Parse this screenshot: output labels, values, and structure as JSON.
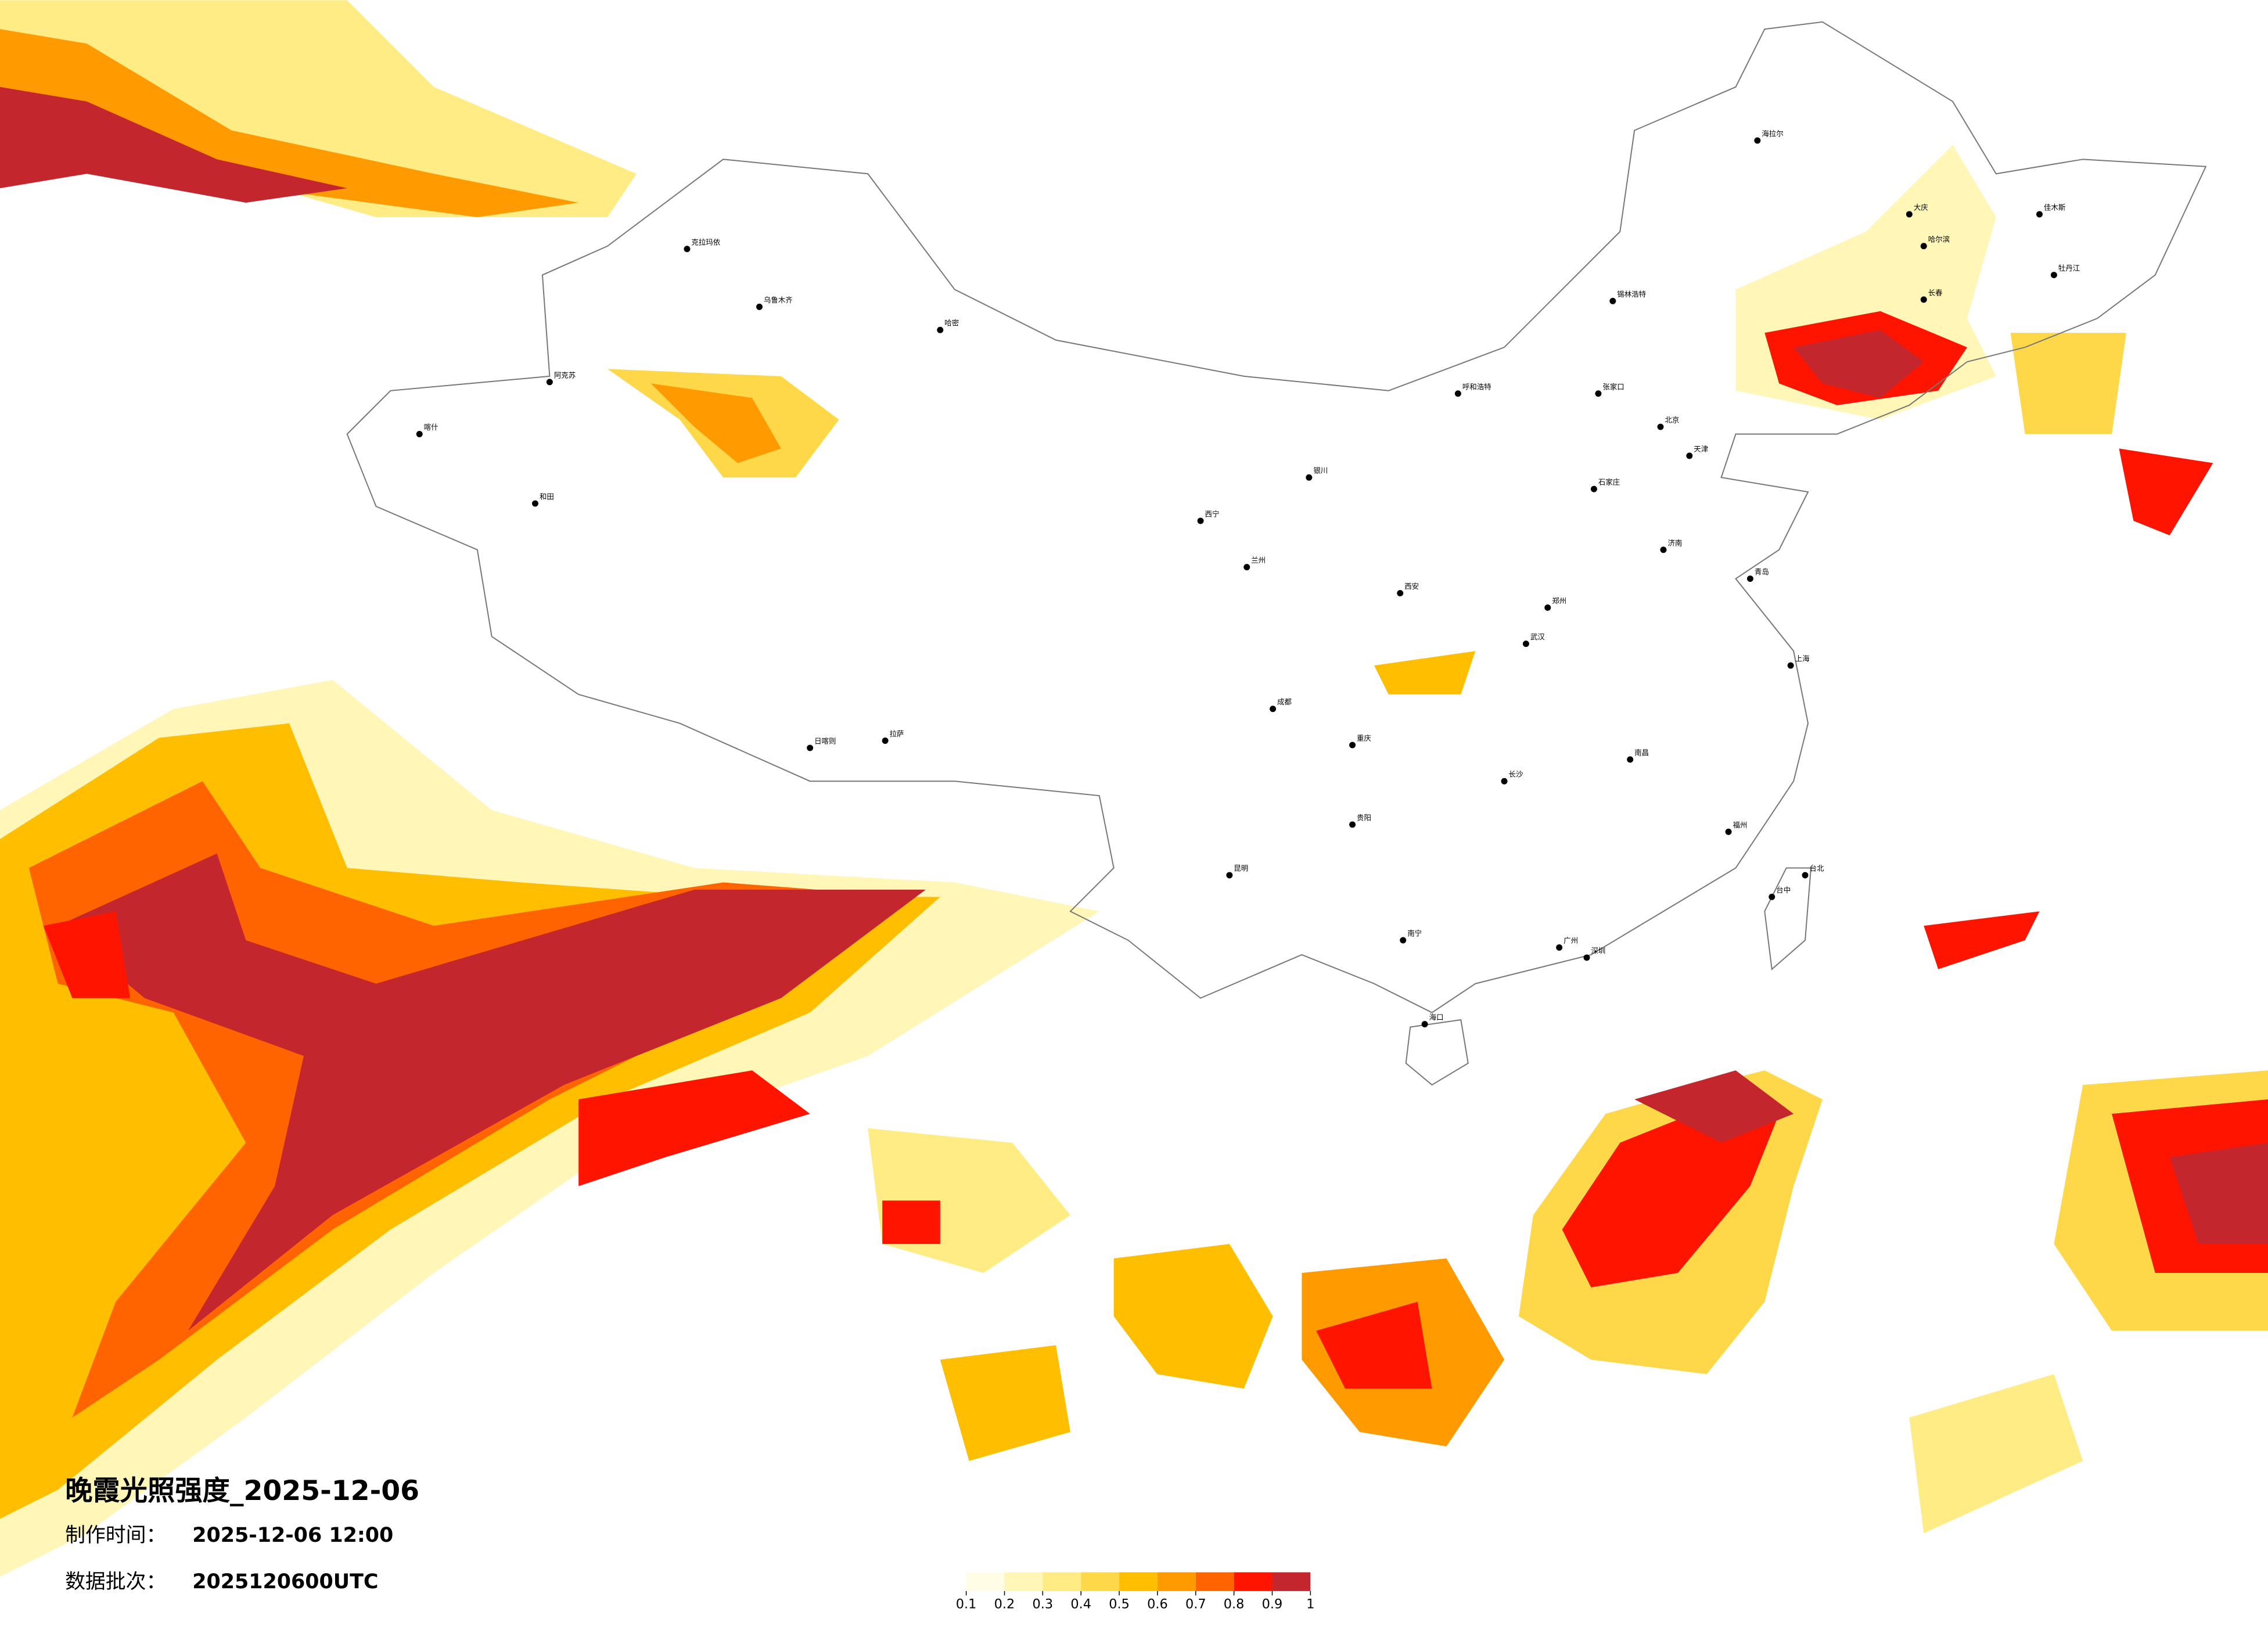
{
  "title": "晚霞光照强度_2025-12-06",
  "info": [
    {
      "label": "制作时间：",
      "value": "2025-12-06 12:00"
    },
    {
      "label": "数据批次：",
      "value": "2025120600UTC"
    }
  ],
  "legend": {
    "ticks": [
      0.1,
      0.2,
      0.3,
      0.4,
      0.5,
      0.6,
      0.7,
      0.8,
      0.9,
      1
    ],
    "colors": [
      "#fffde6",
      "#fff6b8",
      "#ffec85",
      "#ffd84a",
      "#ffbf00",
      "#ff9a00",
      "#ff6400",
      "#ff1400",
      "#c4262e"
    ]
  },
  "cities": [
    "克拉玛依",
    "乌鲁木齐",
    "阿克苏",
    "喀什",
    "和田",
    "哈密",
    "日喀则",
    "拉萨",
    "西宁",
    "兰州",
    "银川",
    "呼和浩特",
    "北京",
    "天津",
    "石家庄",
    "济南",
    "青岛",
    "郑州",
    "西安",
    "成都",
    "重庆",
    "武汉",
    "长沙",
    "南昌",
    "上海",
    "福州",
    "广州",
    "深圳",
    "南宁",
    "海口",
    "昆明",
    "贵阳",
    "台北",
    "台中",
    "哈尔滨",
    "长春",
    "大庆",
    "佳木斯",
    "牡丹江",
    "海拉尔",
    "锡林浩特",
    "张家口"
  ]
}
